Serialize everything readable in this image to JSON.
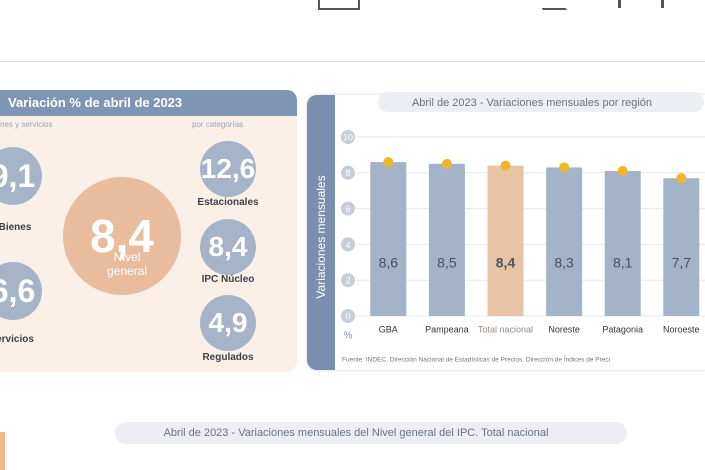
{
  "left_panel": {
    "title": "Variación % de abril de 2023",
    "group_left": "nes y servicios",
    "group_right": "por categorías",
    "bubbles": [
      {
        "value": "9,1",
        "label": "Bienes"
      },
      {
        "value": "6,6",
        "label": "ervicios"
      },
      {
        "value": "8,4",
        "label": "Nivel general"
      },
      {
        "value": "12,6",
        "label": "Estacionales"
      },
      {
        "value": "8,4",
        "label": "IPC Núcleo"
      },
      {
        "value": "4,9",
        "label": "Regulados"
      }
    ]
  },
  "chart_data": {
    "type": "bar",
    "title": "Abril de 2023 - Variaciones mensuales por región",
    "y_label": "Variaciones mensuales",
    "y_unit": "%",
    "categories": [
      "GBA",
      "Pampeana",
      "Total nacional",
      "Noreste",
      "Patagonia",
      "Noroeste"
    ],
    "values": [
      8.6,
      8.5,
      8.4,
      8.3,
      8.1,
      7.7
    ],
    "value_labels": [
      "8,6",
      "8,5",
      "8,4",
      "8,3",
      "8,1",
      "7,7"
    ],
    "colors": [
      "#a3b3c8",
      "#a3b3c8",
      "#e9c3a6",
      "#a3b3c8",
      "#a3b3c8",
      "#a3b3c8"
    ],
    "marker_color": "#f0b52a",
    "ylim": [
      0,
      10
    ],
    "yticks": [
      0,
      2,
      4,
      6,
      8,
      10
    ],
    "grid": true,
    "source": "Fuente: INDEC, Dirección Nacional de Estadísticas de Precios. Dirección de Índices de Preci"
  },
  "bottom_title": "Abril de 2023 - Variaciones mensuales del Nivel general del IPC. Total nacional"
}
